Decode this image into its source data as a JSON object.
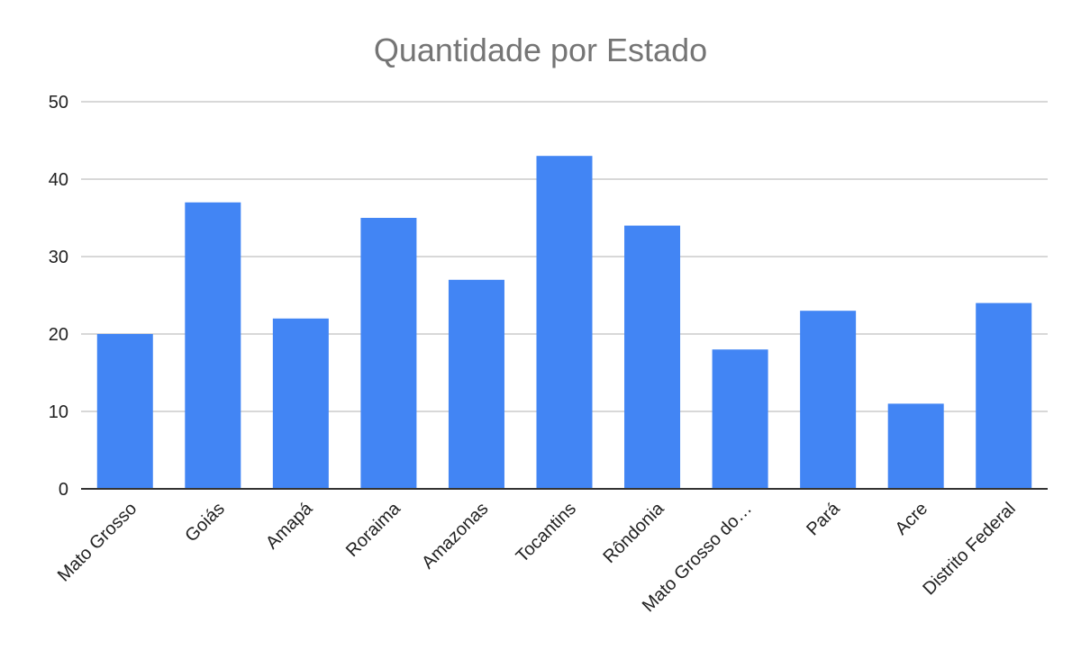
{
  "chart_data": {
    "type": "bar",
    "title": "Quantidade por Estado",
    "xlabel": "",
    "ylabel": "",
    "categories": [
      "Mato Grosso",
      "Goiás",
      "Amapá",
      "Roraima",
      "Amazonas",
      "Tocantins",
      "Rôndonia",
      "Mato Grosso do…",
      "Pará",
      "Acre",
      "Distrito Federal"
    ],
    "values": [
      20,
      37,
      22,
      35,
      27,
      43,
      34,
      18,
      23,
      11,
      24
    ],
    "ylim": [
      0,
      50
    ],
    "yticks": [
      "0",
      "10",
      "20",
      "30",
      "40",
      "50"
    ],
    "grid": true,
    "legend": "none",
    "colors": {
      "bar": "#4285f4"
    }
  }
}
